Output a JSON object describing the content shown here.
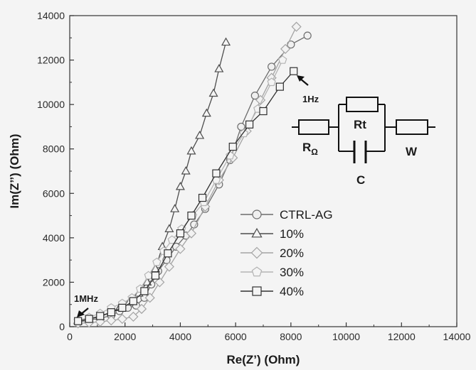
{
  "chart_data": {
    "type": "scatter",
    "xlabel": "Re(Z’) (Ohm)",
    "ylabel": "Im(Z’’) (Ohm)",
    "xlim": [
      0,
      14000
    ],
    "ylim": [
      0,
      14000
    ],
    "x_ticks": [
      "0",
      "2000",
      "4000",
      "6000",
      "8000",
      "10000",
      "12000",
      "14000"
    ],
    "y_ticks": [
      "0",
      "2000",
      "4000",
      "6000",
      "8000",
      "10000",
      "12000",
      "14000"
    ],
    "grid": false,
    "legend_position": "center-right",
    "series": [
      {
        "name": "CTRL-AG",
        "marker": "circle",
        "points": [
          [
            300,
            200
          ],
          [
            700,
            300
          ],
          [
            1100,
            380
          ],
          [
            1500,
            500
          ],
          [
            1800,
            700
          ],
          [
            2100,
            850
          ],
          [
            2400,
            950
          ],
          [
            2700,
            1300
          ],
          [
            2950,
            1900
          ],
          [
            3200,
            2500
          ],
          [
            3500,
            3000
          ],
          [
            3850,
            3600
          ],
          [
            4200,
            4100
          ],
          [
            4500,
            4600
          ],
          [
            4900,
            5300
          ],
          [
            5400,
            6400
          ],
          [
            5800,
            7500
          ],
          [
            6200,
            9000
          ],
          [
            6700,
            10400
          ],
          [
            7300,
            11700
          ],
          [
            8000,
            12700
          ],
          [
            8600,
            13100
          ]
        ]
      },
      {
        "name": "10%",
        "marker": "triangle",
        "points": [
          [
            300,
            250
          ],
          [
            700,
            350
          ],
          [
            1100,
            450
          ],
          [
            1500,
            650
          ],
          [
            1800,
            850
          ],
          [
            2150,
            1100
          ],
          [
            2500,
            1500
          ],
          [
            2800,
            2000
          ],
          [
            3100,
            2600
          ],
          [
            3350,
            3600
          ],
          [
            3600,
            4400
          ],
          [
            3800,
            5300
          ],
          [
            4000,
            6300
          ],
          [
            4200,
            7000
          ],
          [
            4400,
            7900
          ],
          [
            4700,
            8600
          ],
          [
            4950,
            9600
          ],
          [
            5200,
            10500
          ],
          [
            5400,
            11600
          ],
          [
            5650,
            12800
          ]
        ]
      },
      {
        "name": "20%",
        "marker": "diamond",
        "points": [
          [
            300,
            150
          ],
          [
            700,
            180
          ],
          [
            1100,
            220
          ],
          [
            1500,
            280
          ],
          [
            1900,
            350
          ],
          [
            2300,
            450
          ],
          [
            2600,
            800
          ],
          [
            2900,
            1300
          ],
          [
            3250,
            2000
          ],
          [
            3600,
            2700
          ],
          [
            4000,
            3500
          ],
          [
            4400,
            4200
          ],
          [
            4900,
            5400
          ],
          [
            5400,
            6600
          ],
          [
            5900,
            7600
          ],
          [
            6400,
            8800
          ],
          [
            6900,
            10200
          ],
          [
            7300,
            11200
          ],
          [
            7800,
            12500
          ],
          [
            8200,
            13500
          ]
        ]
      },
      {
        "name": "30%",
        "marker": "pentagon",
        "points": [
          [
            300,
            280
          ],
          [
            700,
            420
          ],
          [
            1100,
            600
          ],
          [
            1500,
            850
          ],
          [
            1900,
            1050
          ],
          [
            2250,
            1300
          ],
          [
            2550,
            1700
          ],
          [
            2850,
            2300
          ],
          [
            3150,
            2900
          ],
          [
            3400,
            3400
          ],
          [
            3700,
            3900
          ],
          [
            4050,
            4400
          ],
          [
            4450,
            5000
          ],
          [
            4850,
            5600
          ],
          [
            5300,
            6600
          ],
          [
            5800,
            7700
          ],
          [
            6300,
            8700
          ],
          [
            6800,
            9800
          ],
          [
            7300,
            11000
          ],
          [
            7700,
            12000
          ]
        ]
      },
      {
        "name": "40%",
        "marker": "square",
        "points": [
          [
            300,
            250
          ],
          [
            700,
            350
          ],
          [
            1100,
            480
          ],
          [
            1500,
            650
          ],
          [
            1900,
            850
          ],
          [
            2300,
            1150
          ],
          [
            2700,
            1600
          ],
          [
            3100,
            2300
          ],
          [
            3550,
            3300
          ],
          [
            4000,
            4200
          ],
          [
            4400,
            5000
          ],
          [
            4800,
            5800
          ],
          [
            5300,
            6900
          ],
          [
            5900,
            8100
          ],
          [
            6500,
            9100
          ],
          [
            7000,
            9700
          ],
          [
            7600,
            10800
          ],
          [
            8100,
            11500
          ]
        ]
      }
    ],
    "annotations": [
      {
        "text": "1Hz",
        "points_to": [
          8100,
          11500
        ]
      },
      {
        "text": "1MHz",
        "points_to": [
          250,
          350
        ]
      }
    ],
    "inset_circuit": {
      "labels": {
        "r_omega": "Ω",
        "r_prefix": "R",
        "rt": "Rt",
        "c": "C",
        "w": "W"
      }
    }
  }
}
